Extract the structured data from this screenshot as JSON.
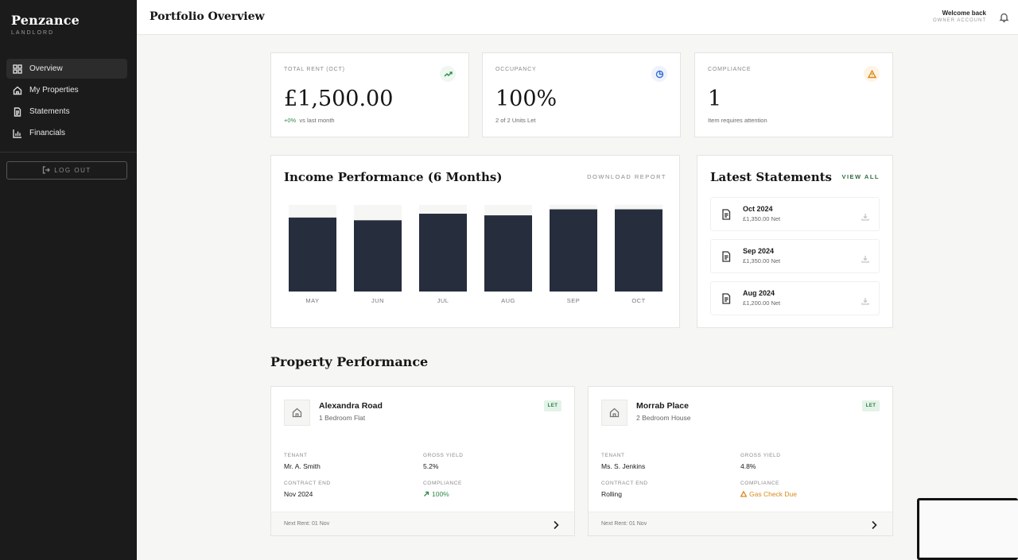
{
  "brand": {
    "name": "Penzance",
    "subtitle": "LANDLORD"
  },
  "nav": [
    {
      "label": "Overview",
      "icon": "grid-icon",
      "active": true
    },
    {
      "label": "My Properties",
      "icon": "house-icon",
      "active": false
    },
    {
      "label": "Statements",
      "icon": "document-icon",
      "active": false
    },
    {
      "label": "Financials",
      "icon": "bar-chart-icon",
      "active": false
    }
  ],
  "logout_label": "LOG OUT",
  "header": {
    "title": "Portfolio Overview",
    "welcome": "Welcome back",
    "account": "OWNER ACCOUNT"
  },
  "stats": {
    "rent": {
      "label": "TOTAL RENT (OCT)",
      "value": "£1,500.00",
      "delta": "+0%",
      "sub": "vs last month",
      "icon": "trending-up-icon",
      "color": "#2e8b4a"
    },
    "occupancy": {
      "label": "OCCUPANCY",
      "value": "100%",
      "sub": "2 of 2 Units Let",
      "icon": "pie-chart-icon",
      "color": "#3a6fd8"
    },
    "compliance": {
      "label": "COMPLIANCE",
      "value": "1",
      "sub": "Item requires attention",
      "icon": "warning-icon",
      "color": "#d98a1e"
    }
  },
  "income": {
    "title": "Income Performance (6 Months)",
    "download_label": "DOWNLOAD REPORT"
  },
  "chart_data": {
    "type": "bar",
    "categories": [
      "MAY",
      "JUN",
      "JUL",
      "AUG",
      "SEP",
      "OCT"
    ],
    "values": [
      1350,
      1300,
      1420,
      1390,
      1500,
      1500
    ],
    "ylim": [
      0,
      1580
    ],
    "grid": false,
    "bar_color": "#262d3d",
    "track_color": "#f6f6f4"
  },
  "statements": {
    "title": "Latest Statements",
    "view_all": "VIEW ALL",
    "items": [
      {
        "month": "Oct 2024",
        "net": "£1,350.00 Net"
      },
      {
        "month": "Sep 2024",
        "net": "£1,350.00 Net"
      },
      {
        "month": "Aug 2024",
        "net": "£1,200.00 Net"
      }
    ]
  },
  "property_section_title": "Property Performance",
  "properties": [
    {
      "name": "Alexandra Road",
      "type": "1 Bedroom Flat",
      "badge": "LET",
      "tenant_label": "TENANT",
      "tenant": "Mr. A. Smith",
      "yield_label": "GROSS YIELD",
      "yield": "5.2%",
      "contract_label": "CONTRACT END",
      "contract": "Nov 2024",
      "compliance_label": "COMPLIANCE",
      "compliance": "100%",
      "compliance_status": "ok",
      "next_rent": "Next Rent: 01 Nov"
    },
    {
      "name": "Morrab Place",
      "type": "2 Bedroom House",
      "badge": "LET",
      "tenant_label": "TENANT",
      "tenant": "Ms. S. Jenkins",
      "yield_label": "GROSS YIELD",
      "yield": "4.8%",
      "contract_label": "CONTRACT END",
      "contract": "Rolling",
      "compliance_label": "COMPLIANCE",
      "compliance": "Gas Check Due",
      "compliance_status": "warn",
      "next_rent": "Next Rent: 01 Nov"
    }
  ]
}
